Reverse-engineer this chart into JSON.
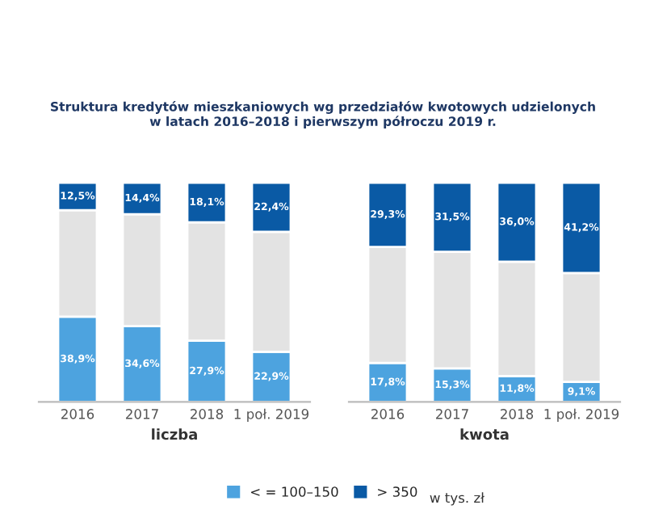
{
  "chart_data": [
    {
      "type": "bar",
      "stacked": true,
      "title": "Struktura kredytów mieszkaniowych wg przedziałów kwotowych udzielonych\nw latach 2016–2018 i pierwszym półroczu 2019 r.",
      "xlabel": "liczba",
      "categories": [
        "2016",
        "2017",
        "2018",
        "1 poł. 2019"
      ],
      "ylim": [
        0,
        100
      ],
      "tick_labels": "x",
      "legend": "bottom",
      "annotations": [
        "w tys. zł"
      ],
      "series": [
        {
          "name": "< = 100–150",
          "color": "#4da3df",
          "values": [
            38.9,
            34.6,
            27.9,
            22.9
          ],
          "value_labels": [
            "38,9%",
            "34,6%",
            "27,9%",
            "22,9%"
          ]
        },
        {
          "color": "#e3e3e3",
          "values": [
            48.6,
            51.0,
            54.0,
            54.7
          ]
        },
        {
          "name": "> 350",
          "color": "#0a5aa5",
          "values": [
            12.5,
            14.4,
            18.1,
            22.4
          ],
          "value_labels": [
            "12,5%",
            "14,4%",
            "18,1%",
            "22,4%"
          ]
        }
      ]
    },
    {
      "type": "bar",
      "stacked": true,
      "xlabel": "kwota",
      "categories": [
        "2016",
        "2017",
        "2018",
        "1 poł. 2019"
      ],
      "ylim": [
        0,
        100
      ],
      "tick_labels": "x",
      "series": [
        {
          "color": "#4da3df",
          "values": [
            17.8,
            15.3,
            11.8,
            9.1
          ],
          "value_labels": [
            "17,8%",
            "15,3%",
            "11,8%",
            "9,1%"
          ]
        },
        {
          "color": "#e3e3e3",
          "values": [
            52.9,
            53.2,
            52.2,
            49.7
          ]
        },
        {
          "color": "#0a5aa5",
          "values": [
            29.3,
            31.5,
            36.0,
            41.2
          ],
          "value_labels": [
            "29,3%",
            "31,5%",
            "36,0%",
            "41,2%"
          ]
        }
      ]
    }
  ]
}
